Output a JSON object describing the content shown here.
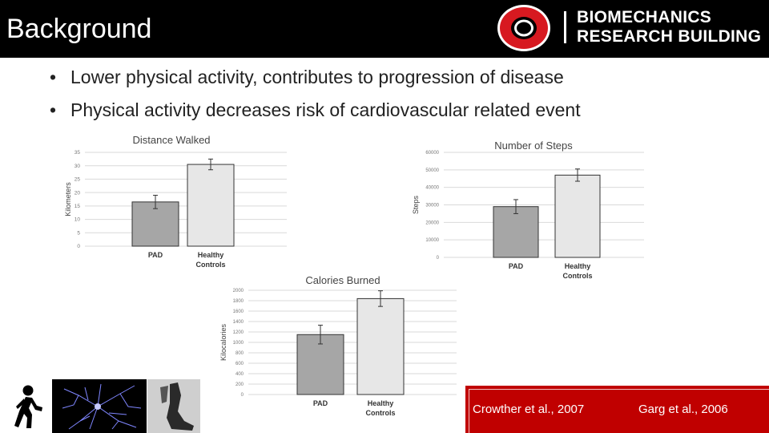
{
  "slide": {
    "title": "Background"
  },
  "logo": {
    "line1": "BIOMECHANICS",
    "line2": "RESEARCH BUILDING",
    "mark": "university-o-logo"
  },
  "bullets": [
    "Lower physical activity, contributes to progression of disease",
    "Physical activity decreases risk of cardiovascular related event"
  ],
  "colors": {
    "header_bg": "#000000",
    "logo_red": "#d71920",
    "bar_pad": "#a6a6a6",
    "bar_healthy": "#e7e7e7",
    "ref_bg": "#c00000"
  },
  "chart_data": [
    {
      "type": "bar",
      "title": "Distance Walked",
      "ylabel": "Kilometers",
      "xlabel": "",
      "categories": [
        "PAD",
        "Healthy Controls"
      ],
      "values": [
        16.5,
        30.5
      ],
      "errors": [
        2.5,
        2.0
      ],
      "ylim": [
        0,
        35
      ],
      "yticks": [
        0,
        5,
        10,
        15,
        20,
        25,
        30,
        35
      ],
      "grid": true
    },
    {
      "type": "bar",
      "title": "Number of Steps",
      "ylabel": "Steps",
      "xlabel": "",
      "categories": [
        "PAD",
        "Healthy Controls"
      ],
      "values": [
        29000,
        47000
      ],
      "errors": [
        4000,
        3500
      ],
      "ylim": [
        0,
        60000
      ],
      "yticks": [
        0,
        10000,
        20000,
        30000,
        40000,
        50000,
        60000
      ],
      "grid": true
    },
    {
      "type": "bar",
      "title": "Calories Burned",
      "ylabel": "Kilocalories",
      "xlabel": "",
      "categories": [
        "PAD",
        "Healthy Controls"
      ],
      "values": [
        1150,
        1840
      ],
      "errors": [
        180,
        150
      ],
      "ylim": [
        0,
        2000
      ],
      "yticks": [
        0,
        200,
        400,
        600,
        800,
        1000,
        1200,
        1400,
        1600,
        1800,
        2000
      ],
      "grid": true
    }
  ],
  "images": [
    {
      "name": "walking-person-icon"
    },
    {
      "name": "neuron-microscopy-image"
    },
    {
      "name": "ankle-brace-image"
    }
  ],
  "references": [
    "Crowther et al., 2007",
    "Garg et al., 2006"
  ]
}
